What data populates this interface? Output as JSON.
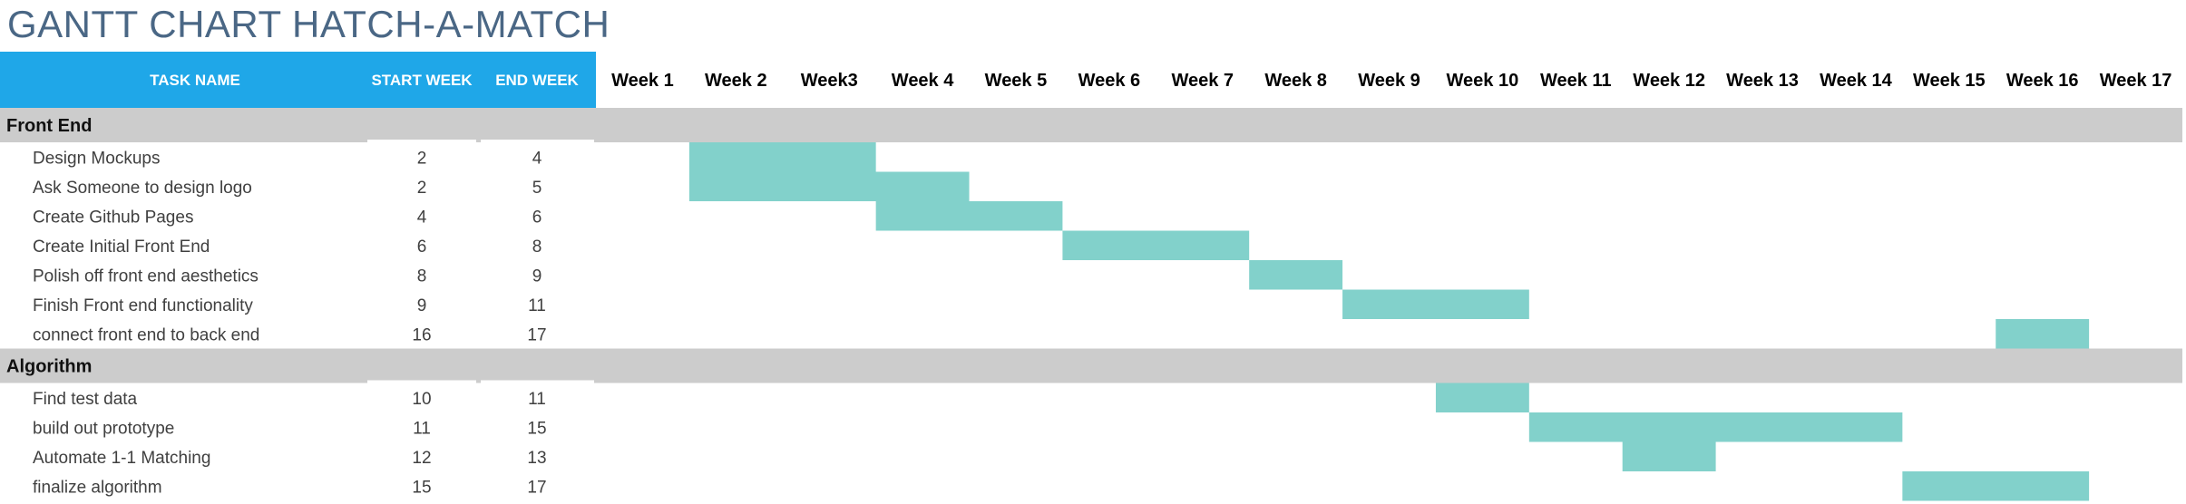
{
  "title": "GANTT CHART HATCH-A-MATCH",
  "colors": {
    "header_left": "#1fa7e8",
    "header_text_left": "#ffffff",
    "section_band": "#cccccc",
    "bar": "#82d1cb",
    "text": "#404040",
    "title": "#4a6785"
  },
  "columns": {
    "task": "TASK NAME",
    "start": "START WEEK",
    "end": "END WEEK"
  },
  "chart_data": {
    "type": "table",
    "weeks": [
      "Week 1",
      "Week 2",
      "Week3",
      "Week 4",
      "Week 5",
      "Week 6",
      "Week 7",
      "Week 8",
      "Week 9",
      "Week 10",
      "Week 11",
      "Week 12",
      "Week 13",
      "Week 14",
      "Week 15",
      "Week 16",
      "Week 17"
    ],
    "sections": [
      {
        "name": "Front End",
        "tasks": [
          {
            "name": "Design Mockups",
            "start": 2,
            "end": 4
          },
          {
            "name": "Ask Someone to design logo",
            "start": 2,
            "end": 5
          },
          {
            "name": "Create Github Pages",
            "start": 4,
            "end": 6
          },
          {
            "name": "Create Initial Front End",
            "start": 6,
            "end": 8
          },
          {
            "name": "Polish off front end aesthetics",
            "start": 8,
            "end": 9
          },
          {
            "name": "Finish Front end functionality",
            "start": 9,
            "end": 11
          },
          {
            "name": "connect front end to back end",
            "start": 16,
            "end": 17
          }
        ]
      },
      {
        "name": "Algorithm",
        "tasks": [
          {
            "name": "Find test data",
            "start": 10,
            "end": 11
          },
          {
            "name": "build out prototype",
            "start": 11,
            "end": 15
          },
          {
            "name": "Automate 1-1 Matching",
            "start": 12,
            "end": 13
          },
          {
            "name": "finalize algorithm",
            "start": 15,
            "end": 17
          }
        ]
      }
    ]
  }
}
